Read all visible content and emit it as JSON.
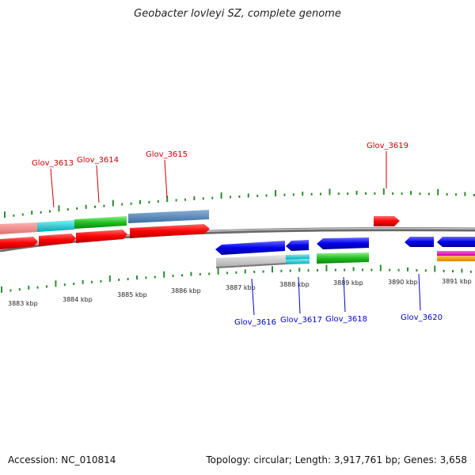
{
  "title": "Geobacter lovleyi SZ, complete genome",
  "accession": "Accession: NC_010814",
  "topology": "Topology: circular; Length: 3,917,761 bp; Genes: 3,658",
  "colors": {
    "label_forward": "#cc0000",
    "label_reverse": "#0000cc",
    "tick": "#2e8b2e",
    "backbone": "#808080"
  },
  "kbp_labels": [
    "3883 kbp",
    "3884 kbp",
    "3885 kbp",
    "3886 kbp",
    "3887 kbp",
    "3888 kbp",
    "3889 kbp",
    "3890 kbp",
    "3891 kbp"
  ],
  "forward_genes": [
    "Glov_3613",
    "Glov_3614",
    "Glov_3615",
    "Glov_3619"
  ],
  "reverse_genes": [
    "Glov_3616",
    "Glov_3617",
    "Glov_3618",
    "Glov_3620"
  ]
}
